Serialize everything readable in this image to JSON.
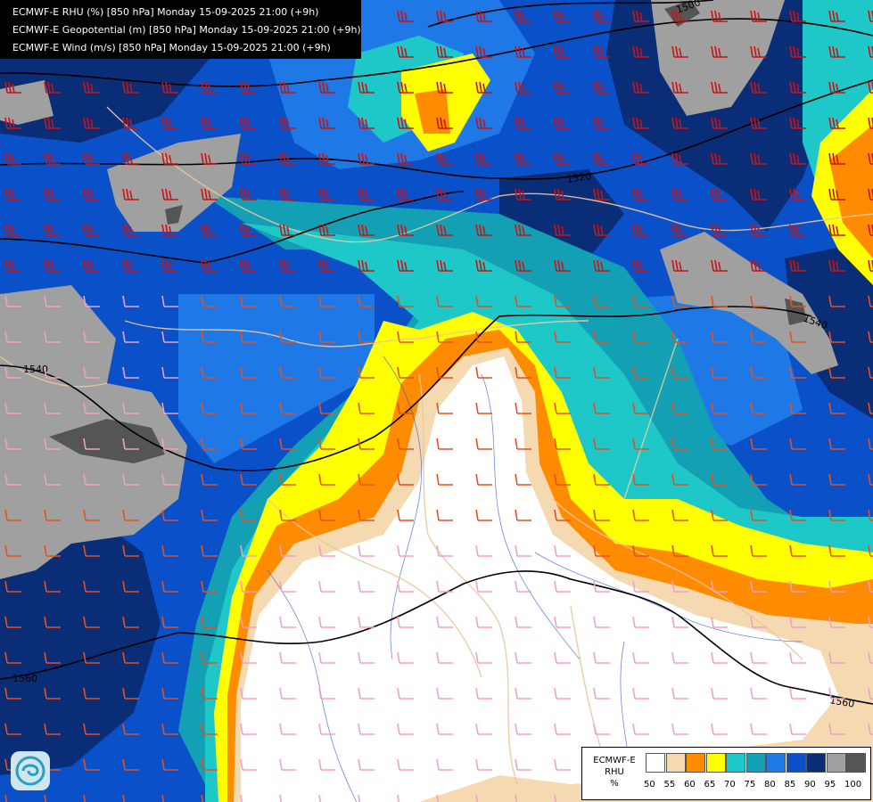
{
  "header": {
    "lines": [
      "ECMWF-E RHU (%) [850 hPa] Monday 15-09-2025 21:00 (+9h)",
      "ECMWF-E Geopotential (m) [850 hPa] Monday 15-09-2025 21:00 (+9h)",
      "ECMWF-E Wind (m/s) [850 hPa] Monday 15-09-2025 21:00 (+9h)"
    ]
  },
  "legend": {
    "model": "ECMWF-E",
    "variable": "RHU",
    "unit": "%",
    "levels": [
      "50",
      "55",
      "60",
      "65",
      "70",
      "75",
      "80",
      "85",
      "90",
      "95",
      "100"
    ],
    "colors": [
      "#ffffff",
      "#f5d9b0",
      "#ff8c00",
      "#ffff00",
      "#1ec8c8",
      "#14a0b4",
      "#1e78e6",
      "#0a50c8",
      "#0a2d78",
      "#a0a0a0",
      "#555555"
    ]
  },
  "contours": [
    {
      "label": "1500"
    },
    {
      "label": "1520"
    },
    {
      "label": "1540"
    },
    {
      "label": "1540"
    },
    {
      "label": "1540"
    },
    {
      "label": "1560"
    },
    {
      "label": "1560"
    }
  ],
  "icons": {
    "logo": "model-logo-icon"
  }
}
